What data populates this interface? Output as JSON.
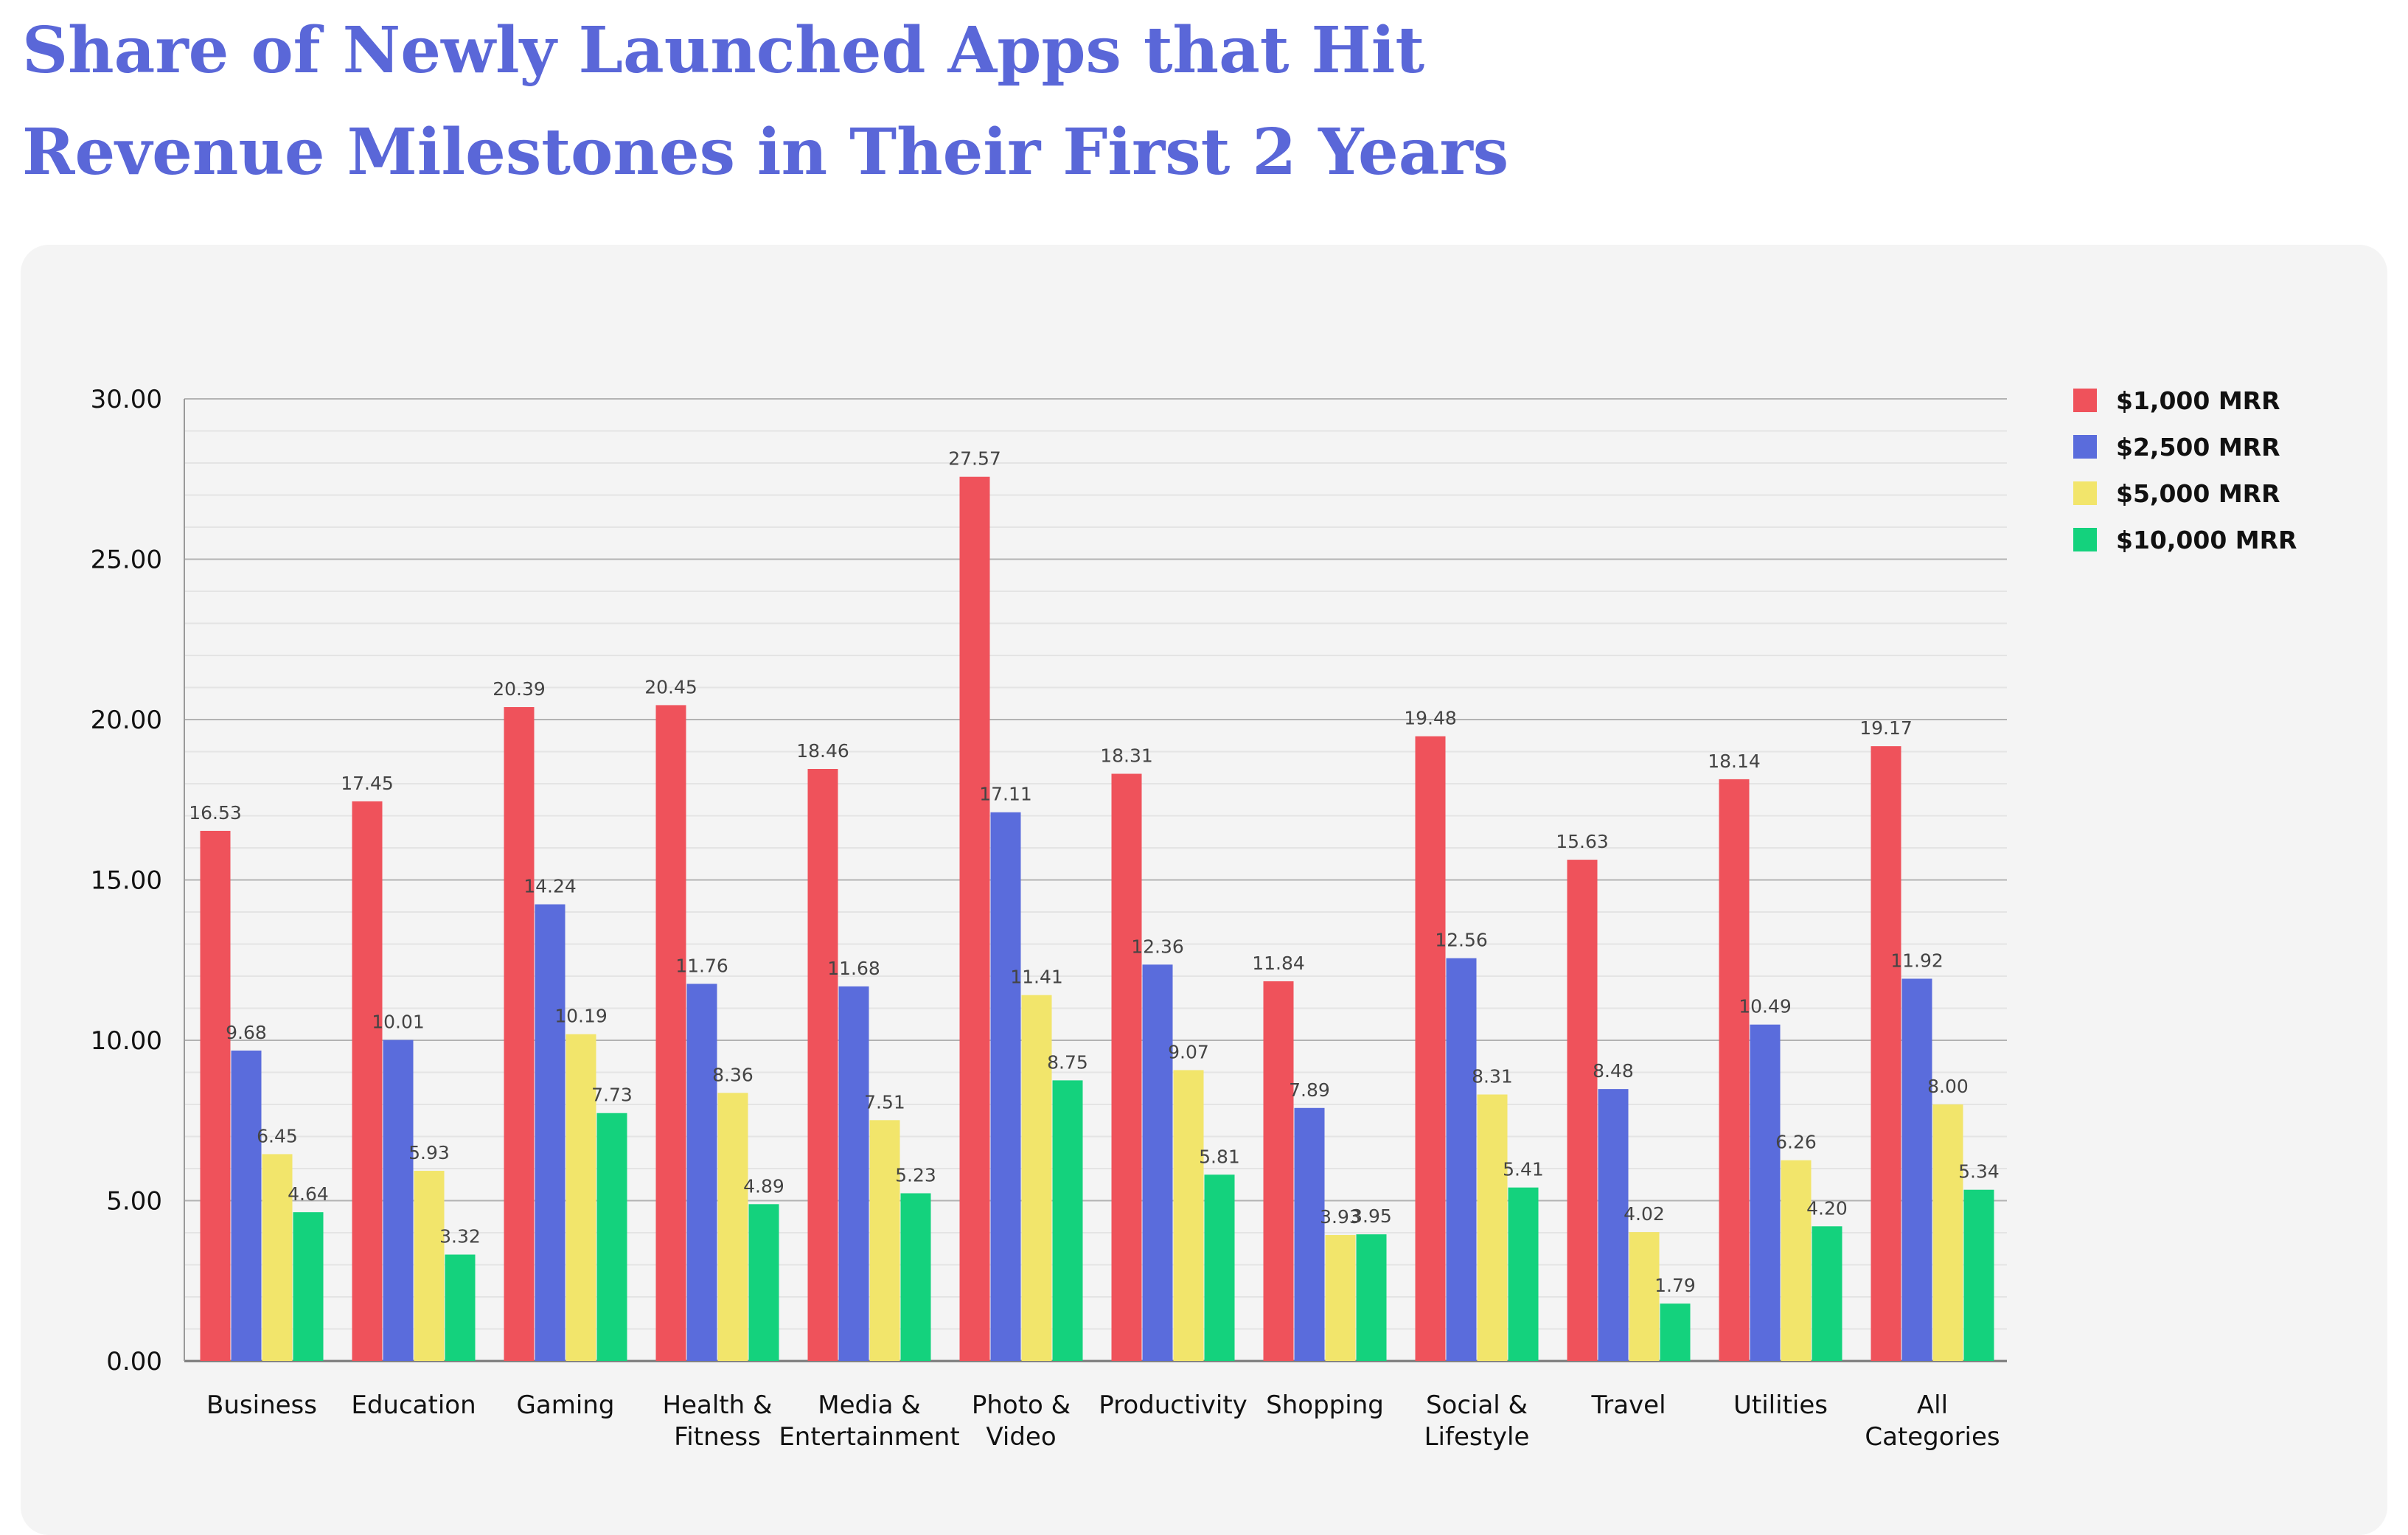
{
  "title_lines": [
    "Share of Newly Launched Apps that Hit",
    "Revenue Milestones in Their First 2 Years"
  ],
  "chart_data": {
    "type": "bar",
    "categories": [
      [
        "Business"
      ],
      [
        "Education"
      ],
      [
        "Gaming"
      ],
      [
        "Health &",
        "Fitness"
      ],
      [
        "Media &",
        "Entertainment"
      ],
      [
        "Photo &",
        "Video"
      ],
      [
        "Productivity"
      ],
      [
        "Shopping"
      ],
      [
        "Social &",
        "Lifestyle"
      ],
      [
        "Travel"
      ],
      [
        "Utilities"
      ],
      [
        "All",
        "Categories"
      ]
    ],
    "series": [
      {
        "name": "$1,000 MRR",
        "color": "#ef525b",
        "values": [
          16.53,
          17.45,
          20.39,
          20.45,
          18.46,
          27.57,
          18.31,
          11.84,
          19.48,
          15.63,
          18.14,
          19.17
        ]
      },
      {
        "name": "$2,500 MRR",
        "color": "#5a6cdc",
        "values": [
          9.68,
          10.01,
          14.24,
          11.76,
          11.68,
          17.11,
          12.36,
          7.89,
          12.56,
          8.48,
          10.49,
          11.92
        ]
      },
      {
        "name": "$5,000 MRR",
        "color": "#f2e56b",
        "values": [
          6.45,
          5.93,
          10.19,
          8.36,
          7.51,
          11.41,
          9.07,
          3.93,
          8.31,
          4.02,
          6.26,
          8.0
        ]
      },
      {
        "name": "$10,000 MRR",
        "color": "#14d27d",
        "values": [
          4.64,
          3.32,
          7.73,
          4.89,
          5.23,
          8.75,
          5.81,
          3.95,
          5.41,
          1.79,
          4.2,
          5.34
        ]
      }
    ],
    "ylim": [
      0,
      30
    ],
    "yticks": [
      "0.00",
      "5.00",
      "10.00",
      "15.00",
      "20.00",
      "25.00",
      "30.00"
    ],
    "grid": true,
    "legend_position": "top-right"
  }
}
